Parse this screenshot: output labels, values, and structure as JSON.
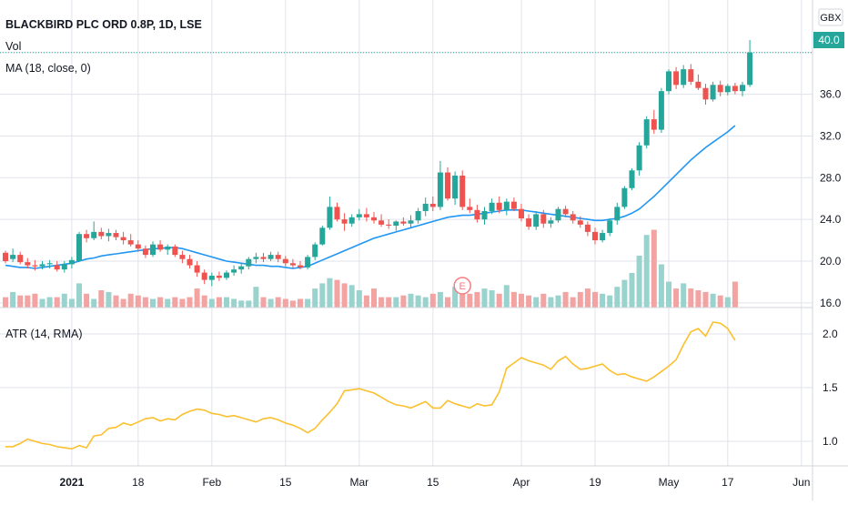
{
  "header": {
    "title": "BLACKBIRD PLC ORD 0.8P, 1D, LSE",
    "vol_label": "Vol",
    "ma_label": "MA (18, close, 0)",
    "currency": "GBX",
    "last_price": "40.0"
  },
  "atr_panel": {
    "label": "ATR (14, RMA)"
  },
  "colors": {
    "up": "#26a69a",
    "down": "#ef5350",
    "vol_up": "#9ad3cd",
    "vol_down": "#f3a3a2",
    "ma": "#2196f3",
    "atr": "#fbc02d",
    "grid": "#e0e3eb",
    "last_line": "#26a69a"
  },
  "chart_data": [
    {
      "type": "candlestick",
      "title": "BLACKBIRD PLC ORD 0.8P, 1D, LSE",
      "ylabel": "GBX",
      "ylim": [
        15.2,
        41.2
      ],
      "yticks": [
        "16.0",
        "20.0",
        "24.0",
        "28.0",
        "32.0",
        "36.0",
        "40.0"
      ],
      "x_ticks": [
        "2021",
        "18",
        "Feb",
        "15",
        "Mar",
        "15",
        "Apr",
        "19",
        "May",
        "17",
        "Jun"
      ],
      "event_marker": "E",
      "ohlc": [
        [
          20.8,
          21.0,
          19.8,
          20.0
        ],
        [
          20.2,
          21.2,
          19.9,
          20.6
        ],
        [
          20.6,
          20.9,
          19.7,
          19.9
        ],
        [
          19.9,
          20.3,
          19.3,
          19.6
        ],
        [
          19.6,
          20.1,
          19.1,
          19.5
        ],
        [
          19.5,
          20.0,
          19.2,
          19.7
        ],
        [
          19.7,
          20.1,
          19.3,
          19.8
        ],
        [
          19.6,
          20.0,
          19.0,
          19.2
        ],
        [
          19.2,
          20.0,
          18.9,
          19.7
        ],
        [
          19.7,
          20.4,
          19.3,
          20.1
        ],
        [
          20.0,
          22.8,
          19.9,
          22.6
        ],
        [
          22.6,
          23.0,
          21.8,
          22.2
        ],
        [
          22.2,
          23.8,
          22.0,
          22.8
        ],
        [
          22.8,
          23.2,
          22.1,
          22.4
        ],
        [
          22.4,
          23.1,
          21.9,
          22.7
        ],
        [
          22.7,
          23.0,
          22.0,
          22.3
        ],
        [
          22.3,
          22.8,
          21.6,
          22.0
        ],
        [
          22.0,
          22.6,
          21.4,
          21.6
        ],
        [
          21.6,
          22.0,
          20.9,
          21.2
        ],
        [
          21.2,
          21.5,
          20.3,
          20.6
        ],
        [
          20.6,
          21.9,
          20.4,
          21.6
        ],
        [
          21.6,
          22.0,
          20.9,
          21.1
        ],
        [
          21.1,
          21.6,
          20.6,
          21.4
        ],
        [
          21.4,
          21.6,
          20.4,
          20.6
        ],
        [
          20.6,
          21.0,
          19.8,
          20.2
        ],
        [
          20.2,
          20.6,
          19.3,
          19.6
        ],
        [
          19.6,
          20.0,
          18.5,
          18.9
        ],
        [
          18.9,
          19.2,
          17.8,
          18.2
        ],
        [
          18.2,
          18.9,
          17.6,
          18.6
        ],
        [
          18.6,
          19.0,
          18.1,
          18.4
        ],
        [
          18.4,
          19.1,
          18.2,
          18.9
        ],
        [
          18.9,
          19.6,
          18.6,
          19.2
        ],
        [
          19.2,
          19.8,
          18.8,
          19.5
        ],
        [
          19.5,
          20.4,
          19.2,
          20.2
        ],
        [
          20.2,
          20.8,
          19.8,
          20.4
        ],
        [
          20.4,
          20.8,
          19.9,
          20.2
        ],
        [
          20.2,
          20.9,
          20.0,
          20.6
        ],
        [
          20.6,
          20.9,
          19.9,
          20.2
        ],
        [
          20.2,
          20.5,
          19.5,
          19.8
        ],
        [
          19.8,
          20.2,
          19.3,
          19.6
        ],
        [
          19.6,
          20.0,
          19.2,
          19.4
        ],
        [
          19.4,
          20.6,
          19.2,
          20.4
        ],
        [
          20.4,
          21.8,
          20.1,
          21.6
        ],
        [
          21.6,
          23.4,
          21.5,
          23.2
        ],
        [
          23.2,
          26.2,
          23.0,
          25.2
        ],
        [
          25.2,
          25.6,
          23.8,
          24.0
        ],
        [
          24.0,
          24.6,
          22.9,
          23.6
        ],
        [
          23.6,
          24.5,
          23.3,
          24.2
        ],
        [
          24.2,
          25.0,
          23.9,
          24.5
        ],
        [
          24.5,
          25.1,
          23.8,
          24.2
        ],
        [
          24.2,
          24.7,
          23.6,
          23.9
        ],
        [
          23.9,
          24.5,
          23.3,
          23.5
        ],
        [
          23.5,
          24.0,
          23.1,
          23.4
        ],
        [
          23.4,
          23.9,
          22.9,
          23.8
        ],
        [
          23.8,
          24.2,
          23.4,
          23.6
        ],
        [
          23.6,
          24.4,
          23.2,
          23.9
        ],
        [
          23.9,
          25.1,
          23.6,
          24.8
        ],
        [
          24.8,
          26.1,
          24.3,
          25.5
        ],
        [
          25.5,
          26.2,
          24.8,
          25.2
        ],
        [
          25.2,
          29.6,
          24.9,
          28.5
        ],
        [
          28.5,
          29.0,
          25.8,
          26.0
        ],
        [
          26.0,
          28.6,
          25.4,
          28.2
        ],
        [
          28.2,
          28.7,
          24.9,
          25.2
        ],
        [
          25.2,
          26.0,
          24.6,
          24.9
        ],
        [
          24.9,
          25.4,
          23.7,
          24.0
        ],
        [
          24.0,
          25.2,
          23.5,
          24.8
        ],
        [
          24.8,
          26.0,
          24.5,
          25.6
        ],
        [
          25.6,
          26.2,
          24.6,
          24.9
        ],
        [
          24.9,
          26.0,
          24.4,
          25.7
        ],
        [
          25.7,
          26.1,
          24.8,
          25.0
        ],
        [
          25.0,
          25.5,
          23.8,
          24.1
        ],
        [
          24.1,
          24.5,
          23.0,
          23.3
        ],
        [
          23.3,
          24.8,
          23.0,
          24.5
        ],
        [
          24.5,
          24.9,
          23.2,
          23.6
        ],
        [
          23.6,
          24.2,
          23.2,
          23.9
        ],
        [
          23.9,
          25.2,
          23.7,
          25.0
        ],
        [
          25.0,
          25.3,
          24.2,
          24.5
        ],
        [
          24.5,
          24.8,
          23.6,
          23.9
        ],
        [
          23.9,
          24.3,
          23.2,
          23.5
        ],
        [
          23.5,
          23.8,
          22.4,
          22.8
        ],
        [
          22.8,
          23.2,
          21.6,
          22.0
        ],
        [
          22.0,
          23.0,
          21.8,
          22.7
        ],
        [
          22.7,
          24.1,
          22.4,
          23.9
        ],
        [
          23.9,
          25.6,
          23.5,
          25.2
        ],
        [
          25.2,
          27.2,
          25.0,
          27.0
        ],
        [
          27.0,
          28.9,
          26.8,
          28.7
        ],
        [
          28.7,
          31.4,
          28.2,
          31.1
        ],
        [
          31.1,
          33.9,
          30.8,
          33.6
        ],
        [
          33.6,
          34.5,
          32.2,
          32.6
        ],
        [
          32.6,
          36.6,
          32.3,
          36.3
        ],
        [
          36.3,
          38.4,
          36.0,
          38.2
        ],
        [
          38.2,
          38.6,
          36.5,
          36.9
        ],
        [
          36.9,
          38.8,
          36.6,
          38.4
        ],
        [
          38.4,
          38.9,
          36.9,
          37.2
        ],
        [
          37.2,
          37.9,
          36.4,
          36.6
        ],
        [
          36.6,
          37.0,
          35.0,
          35.5
        ],
        [
          35.5,
          37.2,
          35.3,
          36.9
        ],
        [
          36.9,
          37.3,
          35.8,
          36.2
        ],
        [
          36.2,
          37.0,
          35.9,
          36.8
        ],
        [
          36.8,
          37.1,
          36.0,
          36.3
        ],
        [
          36.3,
          37.2,
          35.8,
          36.9
        ],
        [
          36.9,
          41.2,
          36.7,
          40.0
        ]
      ],
      "volume": [
        6,
        9,
        7,
        7,
        8,
        5,
        6,
        6,
        8,
        5,
        14,
        8,
        5,
        10,
        9,
        7,
        5,
        8,
        7,
        6,
        5,
        6,
        5,
        6,
        5,
        6,
        11,
        7,
        5,
        6,
        6,
        5,
        4,
        4,
        12,
        6,
        5,
        6,
        5,
        4,
        5,
        5,
        11,
        14,
        17,
        16,
        14,
        13,
        10,
        7,
        11,
        6,
        6,
        6,
        7,
        8,
        7,
        6,
        8,
        9,
        6,
        12,
        8,
        8,
        9,
        11,
        10,
        8,
        13,
        9,
        8,
        7,
        6,
        8,
        6,
        7,
        9,
        6,
        9,
        11,
        9,
        8,
        7,
        12,
        16,
        20,
        30,
        42,
        45,
        25,
        15,
        11,
        14,
        11,
        10,
        9,
        8,
        7,
        6,
        15
      ],
      "ma18": [
        19.6,
        19.5,
        19.4,
        19.4,
        19.3,
        19.4,
        19.5,
        19.6,
        19.7,
        19.8,
        20.0,
        20.2,
        20.3,
        20.5,
        20.6,
        20.7,
        20.8,
        20.9,
        21.0,
        21.1,
        21.2,
        21.2,
        21.3,
        21.3,
        21.2,
        21.0,
        20.8,
        20.6,
        20.4,
        20.2,
        20.0,
        19.9,
        19.8,
        19.7,
        19.6,
        19.6,
        19.5,
        19.5,
        19.4,
        19.3,
        19.4,
        19.5,
        19.8,
        20.1,
        20.4,
        20.7,
        21.0,
        21.3,
        21.6,
        21.9,
        22.2,
        22.4,
        22.6,
        22.8,
        23.0,
        23.2,
        23.4,
        23.6,
        23.8,
        24.0,
        24.2,
        24.3,
        24.4,
        24.4,
        24.5,
        24.6,
        24.7,
        24.8,
        24.9,
        24.9,
        24.9,
        24.8,
        24.7,
        24.6,
        24.5,
        24.4,
        24.3,
        24.2,
        24.1,
        24.0,
        23.9,
        23.9,
        24.0,
        24.1,
        24.3,
        24.6,
        25.0,
        25.6,
        26.2,
        26.9,
        27.6,
        28.3,
        29.0,
        29.7,
        30.3,
        30.9,
        31.4,
        31.9,
        32.4,
        33.0
      ]
    },
    {
      "type": "line",
      "title": "ATR (14, RMA)",
      "ylim": [
        0.8,
        2.2
      ],
      "yticks": [
        "1.0",
        "1.5",
        "2.0"
      ],
      "values": [
        0.95,
        0.95,
        0.98,
        1.02,
        1.0,
        0.98,
        0.97,
        0.95,
        0.94,
        0.93,
        0.96,
        0.94,
        1.05,
        1.06,
        1.12,
        1.13,
        1.17,
        1.15,
        1.18,
        1.21,
        1.22,
        1.19,
        1.21,
        1.2,
        1.25,
        1.28,
        1.3,
        1.29,
        1.26,
        1.25,
        1.23,
        1.24,
        1.22,
        1.2,
        1.18,
        1.21,
        1.22,
        1.2,
        1.17,
        1.15,
        1.12,
        1.08,
        1.12,
        1.2,
        1.27,
        1.35,
        1.47,
        1.48,
        1.49,
        1.47,
        1.45,
        1.41,
        1.37,
        1.34,
        1.33,
        1.31,
        1.34,
        1.37,
        1.31,
        1.31,
        1.38,
        1.35,
        1.33,
        1.31,
        1.35,
        1.33,
        1.34,
        1.46,
        1.68,
        1.73,
        1.78,
        1.75,
        1.73,
        1.71,
        1.67,
        1.75,
        1.79,
        1.72,
        1.67,
        1.68,
        1.7,
        1.72,
        1.66,
        1.62,
        1.63,
        1.6,
        1.58,
        1.56,
        1.6,
        1.65,
        1.7,
        1.76,
        1.9,
        2.02,
        2.05,
        1.98,
        2.11,
        2.1,
        2.05,
        1.94
      ]
    }
  ]
}
